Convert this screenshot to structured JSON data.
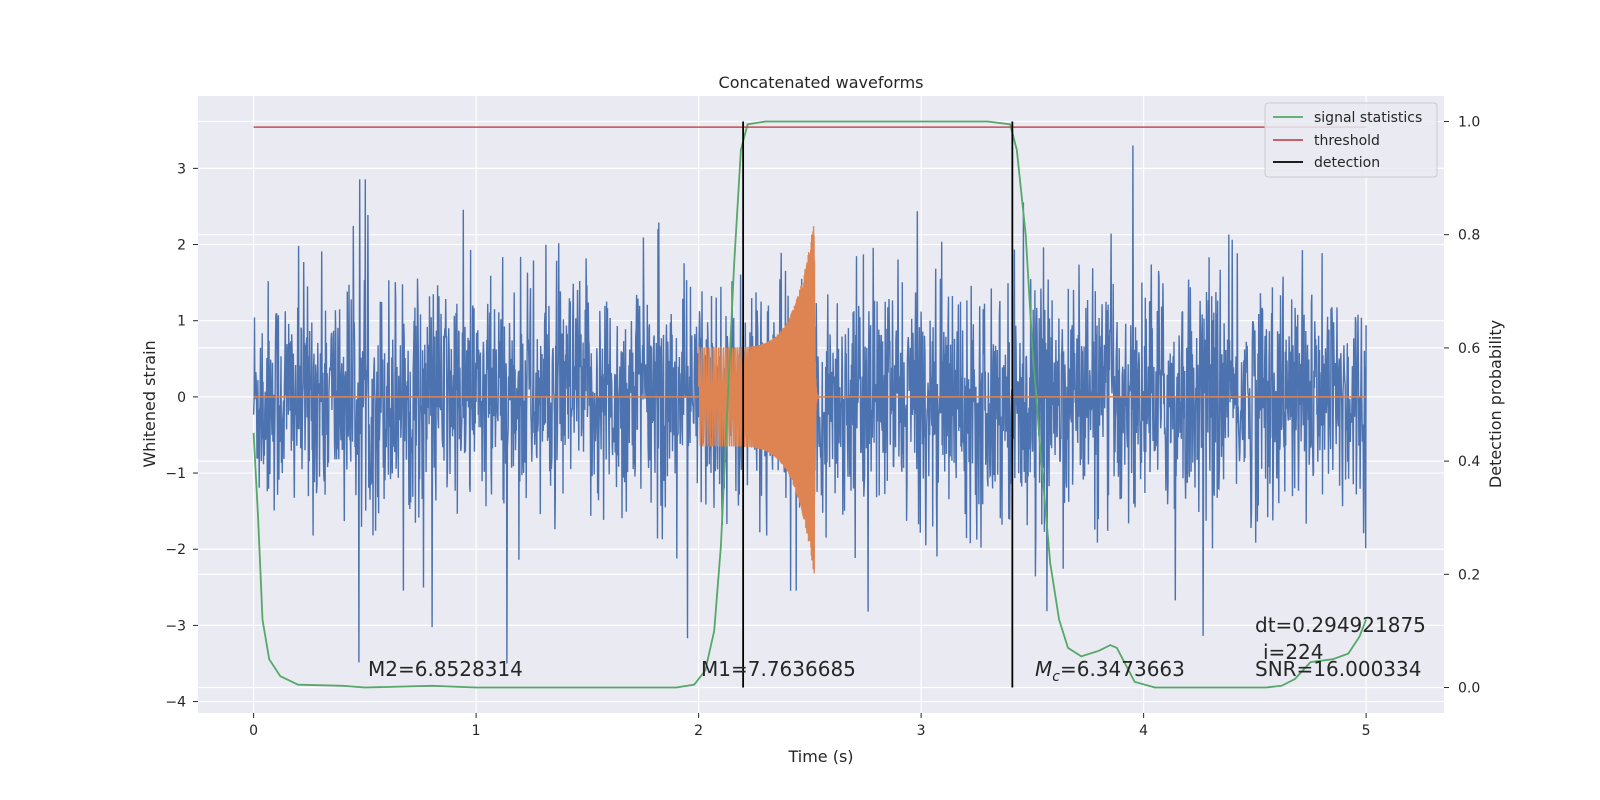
{
  "chart_data": {
    "type": "line",
    "title": "Concatenated waveforms",
    "xlabel": "Time (s)",
    "ylabel": "Whitened strain",
    "y2label": "Detection probability",
    "xlim": [
      -0.25,
      5.35
    ],
    "ylim": [
      -4.15,
      3.95
    ],
    "y2lim": [
      -0.045,
      1.045
    ],
    "x_ticks": [
      0,
      1,
      2,
      3,
      4,
      5
    ],
    "y_ticks": [
      -4,
      -3,
      -2,
      -1,
      0,
      1,
      2,
      3
    ],
    "y2_ticks": [
      0.0,
      0.2,
      0.4,
      0.6,
      0.8,
      1.0
    ],
    "y2_tick_labels": [
      "0.0",
      "0.2",
      "0.4",
      "0.6",
      "0.8",
      "1.0"
    ],
    "grid": true,
    "legend_position": "top-right",
    "series": [
      {
        "name": "",
        "axis": "left",
        "color": "#4c72b0",
        "kind": "noisy-strain",
        "x_range": [
          0,
          5
        ],
        "approx_envelope": [
          -3.5,
          3.3
        ]
      },
      {
        "name": "",
        "axis": "left",
        "color": "#dd8452",
        "kind": "chirp",
        "x_range": [
          2.0,
          2.52
        ],
        "peak_amplitude": 2.35,
        "start_amplitude": 0.65
      },
      {
        "name": "signal statistics",
        "axis": "right",
        "color": "#55a868",
        "points": [
          [
            0.0,
            0.45
          ],
          [
            0.02,
            0.3
          ],
          [
            0.04,
            0.12
          ],
          [
            0.07,
            0.05
          ],
          [
            0.12,
            0.02
          ],
          [
            0.2,
            0.005
          ],
          [
            0.4,
            0.003
          ],
          [
            0.5,
            0.0
          ],
          [
            0.8,
            0.003
          ],
          [
            1.0,
            0.0
          ],
          [
            1.9,
            0.0
          ],
          [
            1.98,
            0.005
          ],
          [
            2.03,
            0.03
          ],
          [
            2.07,
            0.1
          ],
          [
            2.1,
            0.25
          ],
          [
            2.13,
            0.5
          ],
          [
            2.16,
            0.75
          ],
          [
            2.19,
            0.95
          ],
          [
            2.22,
            0.995
          ],
          [
            2.3,
            1.0
          ],
          [
            3.3,
            1.0
          ],
          [
            3.4,
            0.995
          ],
          [
            3.43,
            0.95
          ],
          [
            3.47,
            0.8
          ],
          [
            3.5,
            0.6
          ],
          [
            3.54,
            0.4
          ],
          [
            3.58,
            0.22
          ],
          [
            3.62,
            0.12
          ],
          [
            3.66,
            0.07
          ],
          [
            3.72,
            0.055
          ],
          [
            3.8,
            0.065
          ],
          [
            3.85,
            0.075
          ],
          [
            3.88,
            0.07
          ],
          [
            3.92,
            0.04
          ],
          [
            3.96,
            0.01
          ],
          [
            4.05,
            0.0
          ],
          [
            4.55,
            0.0
          ],
          [
            4.62,
            0.003
          ],
          [
            4.68,
            0.015
          ],
          [
            4.75,
            0.045
          ],
          [
            4.85,
            0.05
          ],
          [
            4.92,
            0.06
          ],
          [
            4.97,
            0.09
          ],
          [
            5.0,
            0.12
          ]
        ]
      },
      {
        "name": "threshold",
        "axis": "right",
        "color": "#c44e52",
        "y": 0.99,
        "x_range": [
          0,
          5
        ]
      },
      {
        "name": "detection",
        "axis": "right",
        "color": "#000000",
        "x_values": [
          2.2,
          3.41
        ],
        "y_range": [
          0.0,
          1.0
        ]
      }
    ],
    "annotations": {
      "m2": "M2=6.8528314",
      "m1": "M1=7.7636685",
      "mc_symbol": "M",
      "mc_sub": "c",
      "mc_value": "=6.3473663",
      "dt": "dt=0.294921875",
      "i": "i=224",
      "snr": "SNR=16.000334"
    }
  }
}
